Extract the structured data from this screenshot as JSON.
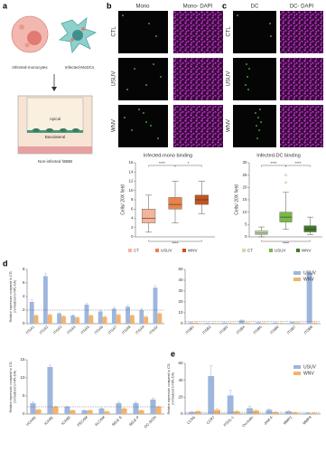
{
  "panel_a": {
    "label": "a",
    "cells": [
      "Infected-monocytes",
      "Infected-MoDCs"
    ],
    "transwell": [
      "Apical",
      "Basolateral"
    ],
    "caption": "Non-infected hBBB"
  },
  "panel_b": {
    "label": "b",
    "columns": [
      "Mono",
      "Mono- DAPI"
    ],
    "rows": [
      "CTL",
      "USUV",
      "WNV"
    ]
  },
  "panel_c": {
    "label": "c",
    "columns": [
      "DC",
      "DC- DAPI"
    ],
    "rows": [
      "CTL",
      "USUV",
      "WNV"
    ]
  },
  "panel_d": {
    "label": "d"
  },
  "panel_e": {
    "label": "e"
  },
  "chart_data": [
    {
      "type": "box",
      "title": "Infected-mono binding",
      "ylabel": "Cells/ 20X field",
      "categories": [
        "CT",
        "USUV",
        "WNV"
      ],
      "colors": [
        "#f4b49c",
        "#e8834a",
        "#c4541f"
      ],
      "min": [
        1,
        3,
        5
      ],
      "q1": [
        3,
        6,
        7
      ],
      "median": [
        4,
        7,
        8
      ],
      "q3": [
        6,
        8.5,
        9
      ],
      "max": [
        9,
        12,
        12
      ],
      "outliers": [
        [],
        [],
        []
      ],
      "ylim": [
        0,
        16
      ],
      "yticks": [
        0,
        2,
        4,
        6,
        8,
        10,
        12,
        14,
        16
      ],
      "significance": [
        "****",
        "*",
        "****"
      ]
    },
    {
      "type": "box",
      "title": "Infected-DC binding",
      "ylabel": "Cells/ 20X field",
      "categories": [
        "CT",
        "USUV",
        "WNV"
      ],
      "colors": [
        "#c6e0a8",
        "#78b944",
        "#3f7a2a"
      ],
      "min": [
        0,
        3,
        1
      ],
      "q1": [
        1,
        6,
        2
      ],
      "median": [
        1.5,
        8,
        3
      ],
      "q3": [
        2.5,
        10,
        4.5
      ],
      "max": [
        4,
        18,
        8
      ],
      "outliers": [
        [],
        [
          22,
          25
        ],
        []
      ],
      "ylim": [
        0,
        30
      ],
      "yticks": [
        0,
        5,
        10,
        15,
        20,
        25,
        30
      ],
      "significance": [
        "****",
        "****",
        "****"
      ]
    },
    {
      "type": "bar",
      "ylabel": [
        "Relative expression compared to CTL",
        "(normalized to NPL-DA)"
      ],
      "categories": [
        "ITGA1",
        "ITGA2",
        "ITGA3",
        "ITGA4",
        "ITGA5",
        "ITGA6",
        "ITGA7",
        "ITGA8",
        "ITGA9",
        "ITGAV"
      ],
      "series": [
        {
          "color": "#9db6dd",
          "values": [
            3.2,
            7,
            1.5,
            1.2,
            2.8,
            1.8,
            2.2,
            2.5,
            2,
            5.3
          ],
          "errors": [
            0.3,
            0.4,
            0.1,
            0.1,
            0.2,
            0.2,
            0.2,
            0.2,
            0.2,
            0.3
          ]
        },
        {
          "color": "#f2b36d",
          "values": [
            1.2,
            1.3,
            1.1,
            0.9,
            1.2,
            1,
            1.3,
            1.2,
            1,
            1.5
          ],
          "errors": [
            0.1,
            0.1,
            0.1,
            0.1,
            0.1,
            0.1,
            0.1,
            0.1,
            0.1,
            0.1
          ]
        }
      ],
      "ylim": [
        0,
        8
      ],
      "yticks": [
        0,
        2,
        4,
        6,
        8
      ],
      "reference_line": 2
    },
    {
      "type": "bar",
      "categories": [
        "ITGB1",
        "ITGB2",
        "ITGB3",
        "ITGB4",
        "ITGB5",
        "ITGB6",
        "ITGB7",
        "ITGB8"
      ],
      "series": [
        {
          "name": "USUV",
          "color": "#9db6dd",
          "values": [
            1,
            0.5,
            0.8,
            3,
            1,
            0.8,
            1.2,
            47
          ],
          "errors": [
            0.2,
            0.1,
            0.1,
            0.4,
            0.2,
            0.1,
            0.2,
            1
          ]
        },
        {
          "name": "WNV",
          "color": "#f2b36d",
          "values": [
            0.8,
            0.5,
            0.6,
            0.8,
            0.7,
            0.5,
            0.9,
            0.8
          ],
          "errors": [
            0.1,
            0.1,
            0.1,
            0.1,
            0.1,
            0.1,
            0.1,
            0.1
          ]
        }
      ],
      "ylim": [
        0,
        50
      ],
      "yticks": [
        0,
        10,
        20,
        30,
        40,
        50
      ],
      "reference_line": 2,
      "legend": "upper right"
    },
    {
      "type": "bar",
      "ylabel": [
        "Relative expression compared to CTL",
        "(normalized to NPL-DA)"
      ],
      "categories": [
        "VCAM1",
        "ICAM1",
        "ICAM2",
        "PECAM",
        "ALCAM",
        "SELE E",
        "SELE P",
        "DC-SIGN"
      ],
      "series": [
        {
          "color": "#9db6dd",
          "values": [
            3,
            13,
            2,
            1,
            1.5,
            3,
            3,
            4
          ],
          "errors": [
            0.4,
            0.5,
            0.2,
            0.1,
            0.2,
            0.3,
            0.3,
            0.4
          ]
        },
        {
          "color": "#f2b36d",
          "values": [
            1.2,
            2,
            1,
            1,
            0.7,
            1.5,
            1,
            2
          ],
          "errors": [
            0.1,
            0.2,
            0.1,
            0.1,
            0.1,
            0.2,
            0.1,
            0.2
          ]
        }
      ],
      "ylim": [
        0,
        15
      ],
      "yticks": [
        0,
        5,
        10,
        15
      ],
      "reference_line": 2
    },
    {
      "type": "bar",
      "ylabel": [
        "Relative expression compared to CTL",
        "(normalized to NPL-DA)"
      ],
      "categories": [
        "CCR5",
        "CCR7",
        "PSGL-1",
        "Occludin",
        "JAM-A",
        "MMP2",
        "MMP9"
      ],
      "series": [
        {
          "name": "USUV",
          "color": "#9db6dd",
          "values": [
            2,
            45,
            22,
            7,
            5,
            3,
            1
          ],
          "errors": [
            1,
            12,
            6,
            2,
            1,
            1,
            0.5
          ]
        },
        {
          "name": "WNV",
          "color": "#f2b36d",
          "values": [
            3,
            5,
            3,
            4,
            2,
            1.5,
            1
          ],
          "errors": [
            1,
            1.5,
            1,
            1,
            0.5,
            0.5,
            0.3
          ]
        }
      ],
      "ylim": [
        0,
        60
      ],
      "yticks": [
        0,
        20,
        40,
        60
      ],
      "reference_line": 2,
      "legend": "upper right"
    }
  ]
}
